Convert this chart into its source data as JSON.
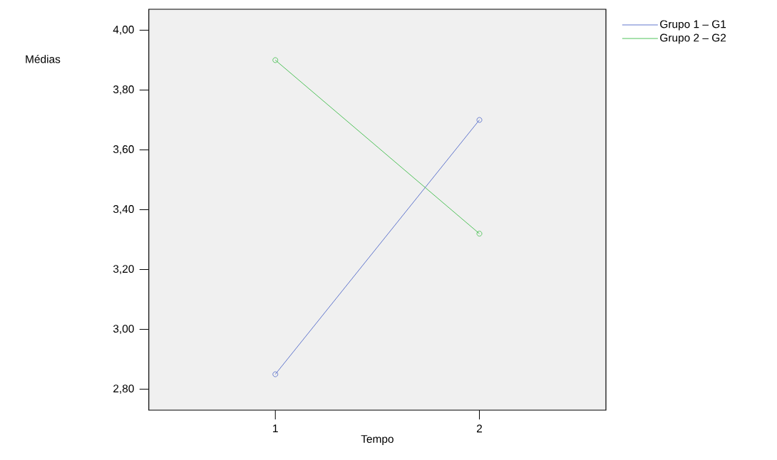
{
  "chart_data": {
    "type": "line",
    "xlabel": "Tempo",
    "ylabel": "Médias",
    "x": [
      1,
      2
    ],
    "xlim": [
      0.38,
      2.62
    ],
    "xticks": [
      1,
      2
    ],
    "ylim": [
      2.73,
      4.07
    ],
    "yticks": [
      {
        "value": 2.8,
        "label": "2,80"
      },
      {
        "value": 3.0,
        "label": "3,00"
      },
      {
        "value": 3.2,
        "label": "3,20"
      },
      {
        "value": 3.4,
        "label": "3,40"
      },
      {
        "value": 3.6,
        "label": "3,60"
      },
      {
        "value": 3.8,
        "label": "3,80"
      },
      {
        "value": 4.0,
        "label": "4,00"
      }
    ],
    "series": [
      {
        "name": "Grupo 1 – G1",
        "color": "#5068c8",
        "values": [
          2.85,
          3.7
        ]
      },
      {
        "name": "Grupo 2 – G2",
        "color": "#3cbc48",
        "values": [
          3.9,
          3.32
        ]
      }
    ],
    "marker": "circle",
    "line_style": "solid",
    "grid": false,
    "legend": "top right"
  }
}
